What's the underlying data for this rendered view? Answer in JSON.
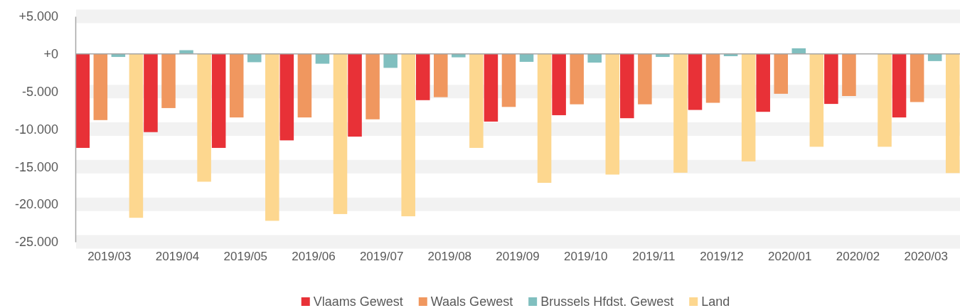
{
  "chart_data": {
    "type": "bar",
    "categories": [
      "2019/03",
      "2019/04",
      "2019/05",
      "2019/06",
      "2019/07",
      "2019/08",
      "2019/09",
      "2019/10",
      "2019/11",
      "2019/12",
      "2020/01",
      "2020/02",
      "2020/03"
    ],
    "series": [
      {
        "name": "Vlaams Gewest",
        "color": "#e83137",
        "values": [
          -12500,
          -10400,
          -12500,
          -11500,
          -11000,
          -6150,
          -9000,
          -8150,
          -8550,
          -7450,
          -7700,
          -6650,
          -8450
        ]
      },
      {
        "name": "Waals Gewest",
        "color": "#f0975f",
        "values": [
          -8800,
          -7200,
          -8450,
          -8450,
          -8700,
          -5750,
          -7050,
          -6700,
          -6700,
          -6500,
          -5300,
          -5600,
          -6400
        ]
      },
      {
        "name": "Brussels Hfdst. Gewest",
        "color": "#80bfbf",
        "values": [
          -400,
          500,
          -1100,
          -1300,
          -1850,
          -450,
          -1050,
          -1150,
          -400,
          -300,
          750,
          null,
          -950
        ]
      },
      {
        "name": "Land",
        "color": "#fdd78f",
        "values": [
          -21800,
          -17000,
          -22200,
          -21300,
          -21600,
          -12500,
          -17150,
          -16050,
          -15800,
          -14300,
          -12350,
          -12350,
          -15850
        ]
      }
    ],
    "ylim": [
      -25000,
      5000
    ],
    "yticks": [
      {
        "value": 5000,
        "label": "+5.000"
      },
      {
        "value": 0,
        "label": "+0"
      },
      {
        "value": -5000,
        "label": "-5.000"
      },
      {
        "value": -10000,
        "label": "-10.000"
      },
      {
        "value": -15000,
        "label": "-15.000"
      },
      {
        "value": -20000,
        "label": "-20.000"
      },
      {
        "value": -25000,
        "label": "-25.000"
      }
    ],
    "grid": "y",
    "legend": "bottom"
  }
}
